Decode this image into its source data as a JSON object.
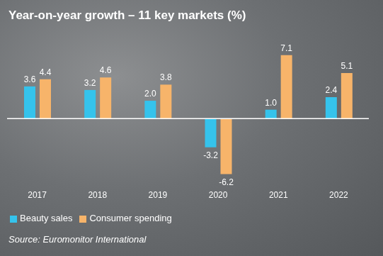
{
  "chart_data": {
    "type": "bar",
    "title": "Year-on-year growth – 11 key markets (%)",
    "categories": [
      "2017",
      "2018",
      "2019",
      "2020",
      "2021",
      "2022"
    ],
    "series": [
      {
        "name": "Beauty sales",
        "color": "#35c3ec",
        "values": [
          3.6,
          3.2,
          2.0,
          -3.2,
          1.0,
          2.4
        ],
        "value_labels": [
          "3.6",
          "3.2",
          "2.0",
          "-3.2",
          "1.0",
          "2.4"
        ]
      },
      {
        "name": "Consumer spending",
        "color": "#f7b46a",
        "values": [
          4.4,
          4.6,
          3.8,
          -6.2,
          7.1,
          5.1
        ],
        "value_labels": [
          "4.4",
          "4.6",
          "3.8",
          "-6.2",
          "7.1",
          "5.1"
        ]
      }
    ],
    "ylim": [
      -7.5,
      8.5
    ],
    "data_labels": true,
    "tick_labels": "x",
    "legend": "bottom-left",
    "annotations": [
      "Source: Euromonitor International"
    ]
  }
}
